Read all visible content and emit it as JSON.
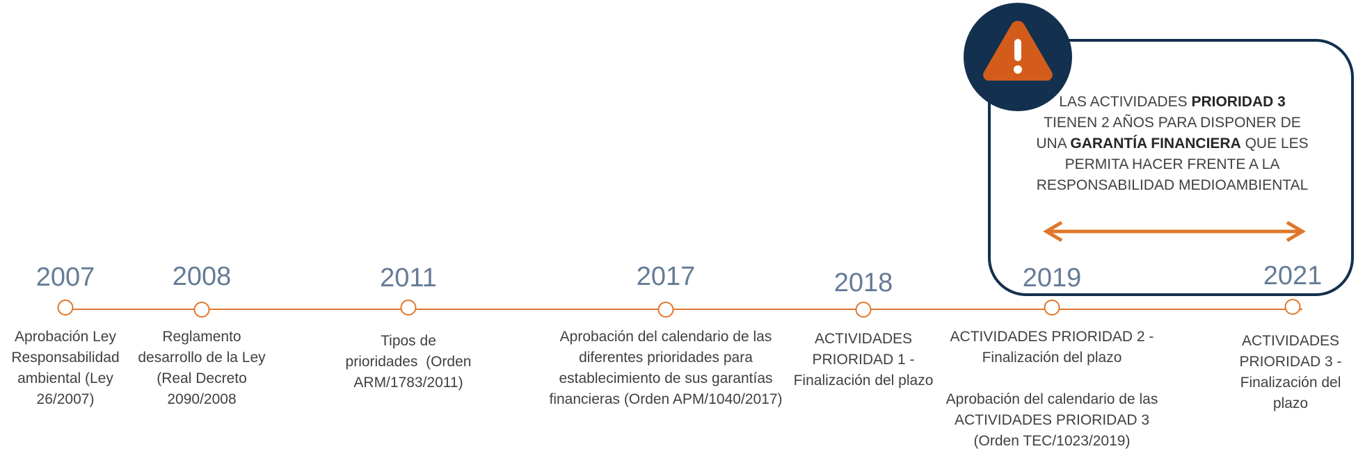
{
  "timeline": {
    "events": [
      {
        "year": "2007",
        "lines": [
          "Aprobación Ley",
          "Responsabilidad",
          "ambiental (Ley",
          "26/2007)"
        ]
      },
      {
        "year": "2008",
        "lines": [
          "Reglamento",
          "desarrollo de la Ley",
          "(Real Decreto",
          "2090/2008"
        ]
      },
      {
        "year": "2011",
        "lines": [
          "Tipos de",
          "prioridades  (Orden",
          "ARM/1783/2011)"
        ]
      },
      {
        "year": "2017",
        "lines": [
          "Aprobación del calendario de las",
          "diferentes prioridades para",
          "establecimiento de sus garantías",
          "financieras (Orden APM/1040/2017)"
        ]
      },
      {
        "year": "2018",
        "lines": [
          "ACTIVIDADES",
          "PRIORIDAD 1 -",
          "Finalización del plazo"
        ]
      },
      {
        "year": "2019",
        "lines": [
          "ACTIVIDADES PRIORIDAD 2 -",
          "Finalización del plazo",
          "",
          "Aprobación del calendario de las",
          "ACTIVIDADES PRIORIDAD 3",
          "(Orden TEC/1023/2019)"
        ]
      },
      {
        "year": "2021",
        "lines": [
          "ACTIVIDADES",
          "PRIORIDAD 3 -",
          "Finalización del",
          "plazo"
        ]
      }
    ]
  },
  "callout": {
    "line1_a": "LAS ACTIVIDADES ",
    "line1_b": "PRIORIDAD 3",
    "line2": "TIENEN 2 AÑOS PARA DISPONER DE",
    "line3_a": "UNA ",
    "line3_b": "GARANTÍA FINANCIERA",
    "line3_c": " QUE LES",
    "line4": "PERMITA HACER FRENTE A LA",
    "line5": "RESPONSABILIDAD MEDIOAMBIENTAL"
  },
  "icons": {
    "warning": "warning-icon",
    "arrow": "double-arrow-icon"
  },
  "colors": {
    "accent": "#e0772b",
    "navy": "#13304f",
    "year": "#657b96",
    "warning": "#d35c1b"
  }
}
